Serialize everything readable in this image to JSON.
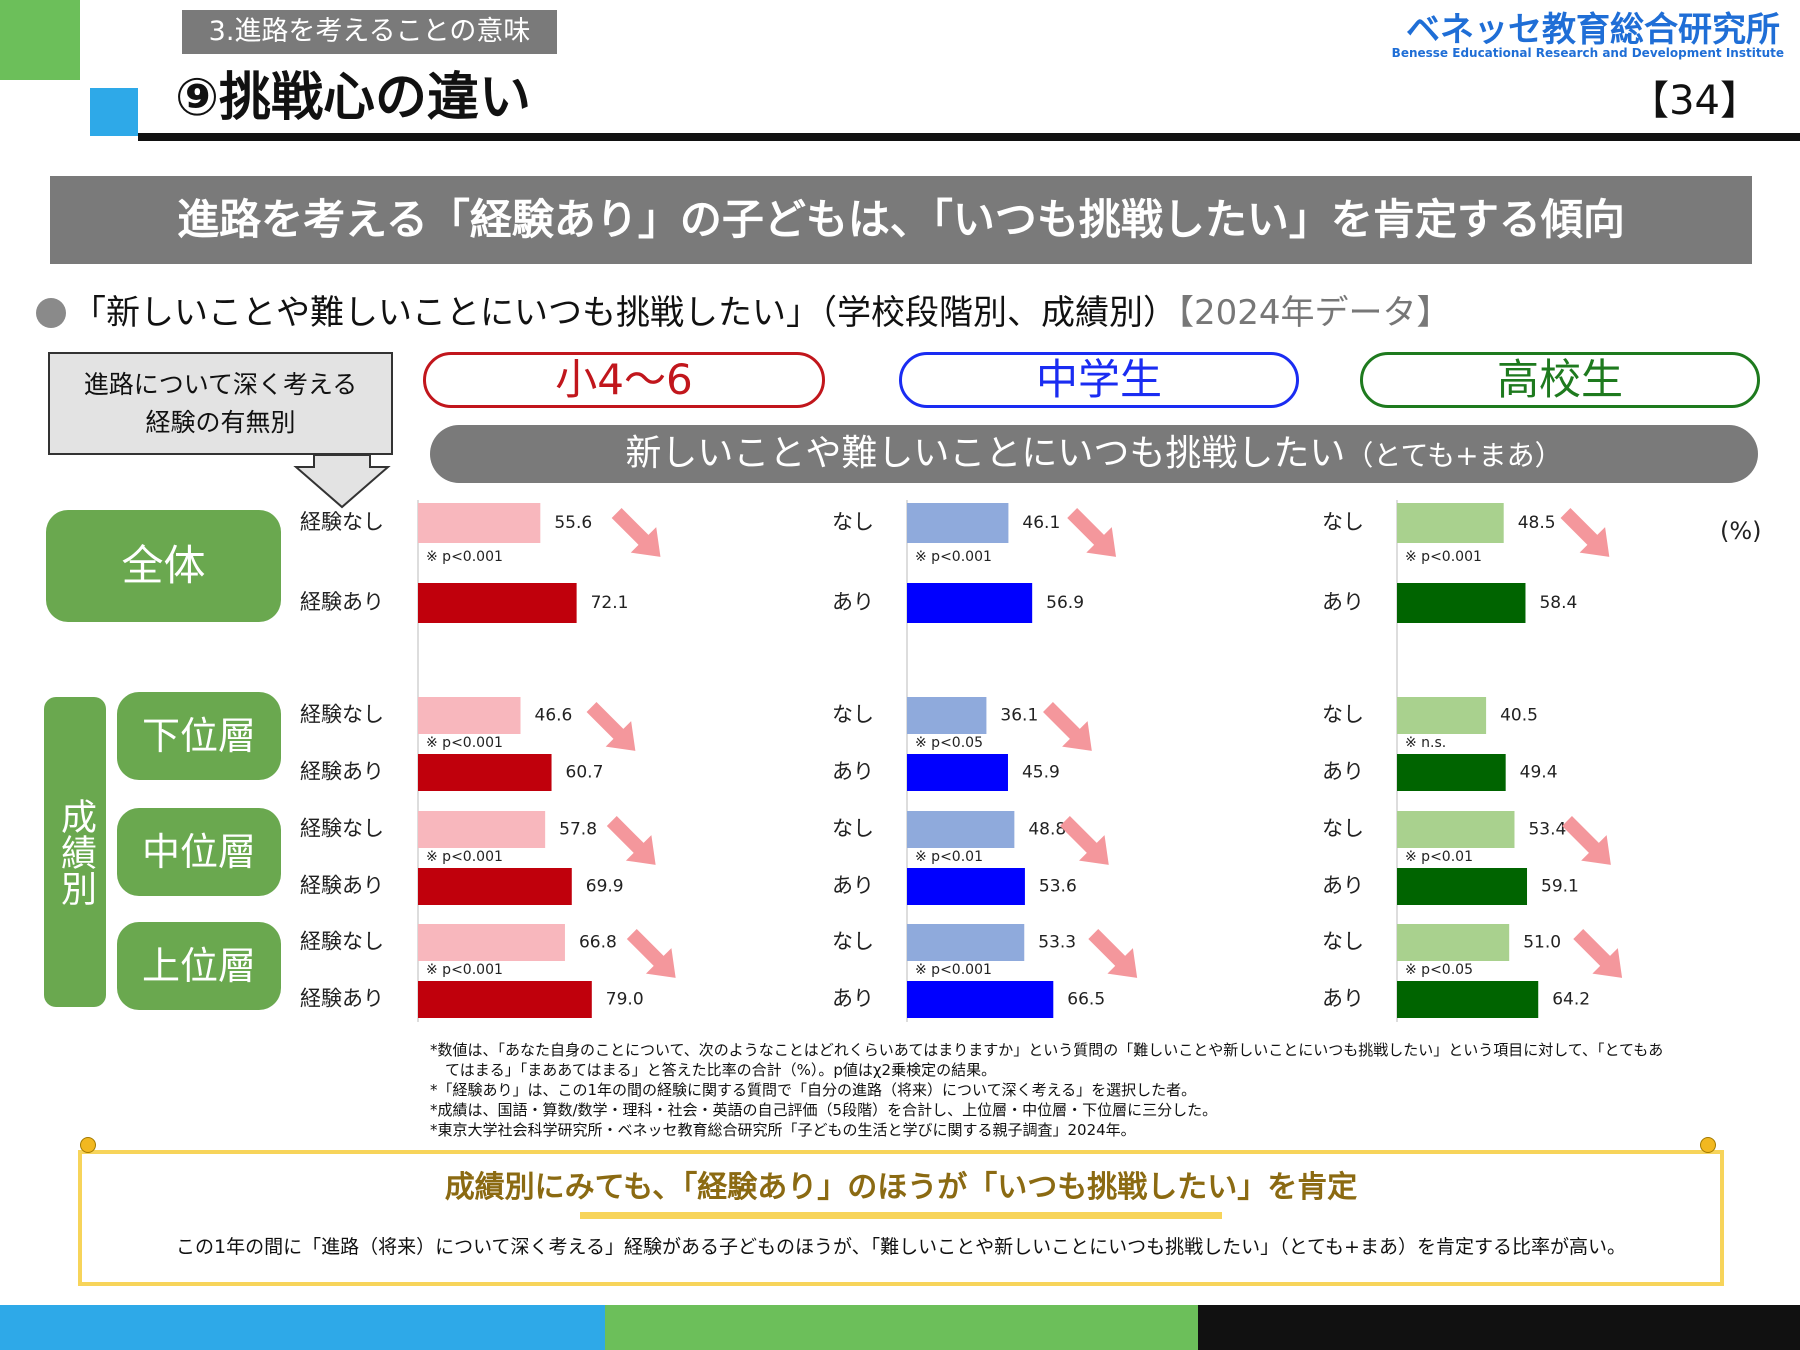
{
  "header": {
    "section_label": "3.進路を考えることの意味",
    "title": "⑨挑戦心の違い",
    "logo_jp": "ベネッセ教育総合研究所",
    "logo_en": "Benesse  Educational Research and Development Institute",
    "page_number": "【34】"
  },
  "banner": "進路を考える「経験あり」の子どもは、「いつも挑戦したい」を肯定する傾向",
  "subtitle": {
    "text": "「新しいことや難しいことにいつも挑戦したい」（学校段階別、成績別）",
    "year": "【2024年データ】"
  },
  "explain_box": {
    "line1": "進路について深く考える",
    "line2": "経験の有無別"
  },
  "school_levels": [
    "小4～6",
    "中学生",
    "高校生"
  ],
  "question": {
    "text": "新しいことや難しいことにいつも挑戦したい",
    "note": "（とても+まあ）"
  },
  "unit_label": "(%)",
  "group_labels": {
    "all": "全体",
    "grade": "成績別",
    "low": "下位層",
    "mid": "中位層",
    "high": "上位層"
  },
  "row_labels_elem": {
    "none": "経験なし",
    "yes": "経験あり"
  },
  "row_labels_short": {
    "none": "なし",
    "yes": "あり"
  },
  "chart_data": {
    "type": "bar",
    "orientation": "horizontal",
    "categories": [
      "全体",
      "下位層",
      "中位層",
      "上位層"
    ],
    "panels": [
      {
        "name": "小4～6",
        "colors": {
          "none": "#f8b7bd",
          "yes": "#c0000c"
        },
        "none": [
          55.6,
          46.6,
          57.8,
          66.8
        ],
        "yes": [
          72.1,
          60.7,
          69.9,
          79.0
        ],
        "none_labels": [
          "55.6",
          "46.6",
          "57.8",
          "66.8"
        ],
        "yes_labels": [
          "72.1",
          "60.7",
          "69.9",
          "79.0"
        ],
        "sig": [
          "※ p<0.001",
          "※ p<0.001",
          "※ p<0.001",
          "※ p<0.001"
        ]
      },
      {
        "name": "中学生",
        "colors": {
          "none": "#8faadc",
          "yes": "#0000ff"
        },
        "none": [
          46.1,
          36.1,
          48.8,
          53.3
        ],
        "yes": [
          56.9,
          45.9,
          53.6,
          66.5
        ],
        "none_labels": [
          "46.1",
          "36.1",
          "48.8",
          "53.3"
        ],
        "yes_labels": [
          "56.9",
          "45.9",
          "53.6",
          "66.5"
        ],
        "sig": [
          "※ p<0.001",
          "※ p<0.05",
          "※ p<0.01",
          "※ p<0.001"
        ]
      },
      {
        "name": "高校生",
        "colors": {
          "none": "#a9d18e",
          "yes": "#006400"
        },
        "none": [
          48.5,
          40.5,
          53.4,
          51.0
        ],
        "yes": [
          58.4,
          49.4,
          59.1,
          64.2
        ],
        "none_labels": [
          "48.5",
          "40.5",
          "53.4",
          "51.0"
        ],
        "yes_labels": [
          "58.4",
          "49.4",
          "59.1",
          "64.2"
        ],
        "sig": [
          "※ p<0.001",
          "※ n.s.",
          "※ p<0.01",
          "※ p<0.05"
        ]
      }
    ],
    "increase_arrows": [
      [
        true,
        true,
        true,
        true
      ],
      [
        true,
        true,
        true,
        true
      ],
      [
        true,
        false,
        true,
        true
      ]
    ],
    "arrow_color": "#f4979c"
  },
  "notes": [
    "*数値は、「あなた自身のことについて、次のようなことはどれくらいあてはまりますか」という質問の「難しいことや新しいことにいつも挑戦したい」という項目に対して、「とてもあ",
    "　てはまる」「まああてはまる」と答えた比率の合計（%）。p値はχ2乗検定の結果。",
    "*「経験あり」は、この1年の間の経験に関する質問で「自分の進路（将来）について深く考える」を選択した者。",
    "*成績は、国語・算数/数学・理科・社会・英語の自己評価（5段階）を合計し、上位層・中位層・下位層に三分した。",
    "*東京大学社会科学研究所・ベネッセ教育総合研究所「子どもの生活と学びに関する親子調査」2024年。"
  ],
  "conclusion": {
    "title": "成績別にみても、「経験あり」のほうが「いつも挑戦したい」を肯定",
    "body": "この1年の間に「進路（将来）について深く考える」経験がある子どものほうが、「難しいことや新しいことにいつも挑戦したい」（とても+まあ）を肯定する比率が高い。"
  }
}
